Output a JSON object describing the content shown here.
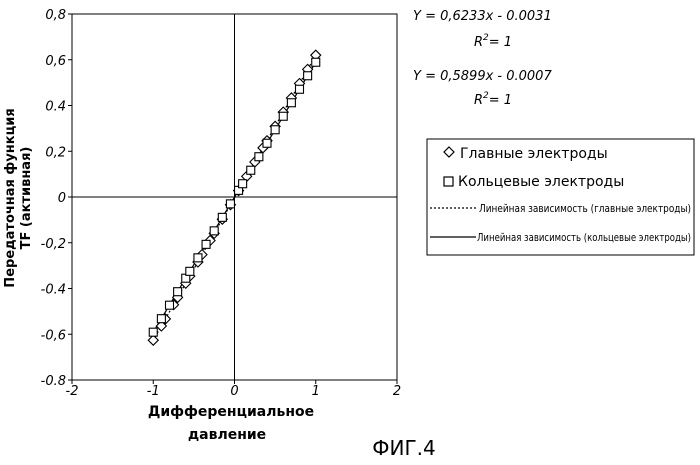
{
  "figure_label": "ФИГ.4",
  "equations": [
    {
      "line": "Y = 0,6233x - 0.0031",
      "r2_base": "R",
      "r2_sup": "2",
      "r2_rest": "= 1"
    },
    {
      "line": "Y = 0,5899x - 0.0007",
      "r2_base": "R",
      "r2_sup": "2",
      "r2_rest": "= 1"
    }
  ],
  "chart_data": {
    "type": "scatter",
    "xlabel": [
      "Дифференциальное",
      "давление"
    ],
    "ylabel": [
      "Передаточная функция",
      "TF (активная)"
    ],
    "xlim": [
      -2,
      2
    ],
    "ylim": [
      -0.8,
      0.8
    ],
    "x_ticks": [
      -2,
      -1,
      0,
      1,
      2
    ],
    "x_tick_labels": [
      "-2",
      "-1",
      "0",
      "1",
      "2"
    ],
    "y_ticks": [
      -0.8,
      -0.6,
      -0.4,
      -0.2,
      0,
      0.2,
      0.4,
      0.6,
      0.8
    ],
    "y_tick_labels": [
      "-0.8",
      "-0,6",
      "-0.4",
      "-0,2",
      "0",
      "0,2",
      "0.4",
      "0,6",
      "0,8"
    ],
    "grid": false,
    "legend_position": "right",
    "series": [
      {
        "name": "Главные электроды",
        "marker": "diamond",
        "x": [
          -1.0,
          -0.9,
          -0.85,
          -0.75,
          -0.7,
          -0.6,
          -0.55,
          -0.45,
          -0.4,
          -0.3,
          -0.25,
          -0.15,
          -0.05,
          0.05,
          0.15,
          0.25,
          0.35,
          0.4,
          0.5,
          0.6,
          0.7,
          0.8,
          0.9,
          1.0
        ],
        "y": [
          -0.626,
          -0.564,
          -0.533,
          -0.471,
          -0.439,
          -0.377,
          -0.346,
          -0.284,
          -0.252,
          -0.19,
          -0.159,
          -0.097,
          -0.034,
          0.028,
          0.09,
          0.153,
          0.215,
          0.246,
          0.309,
          0.371,
          0.433,
          0.496,
          0.558,
          0.62
        ]
      },
      {
        "name": "Кольцевые электроды",
        "marker": "square",
        "x": [
          -1.0,
          -0.9,
          -0.8,
          -0.7,
          -0.6,
          -0.55,
          -0.45,
          -0.35,
          -0.25,
          -0.15,
          -0.05,
          0.05,
          0.1,
          0.2,
          0.3,
          0.4,
          0.5,
          0.6,
          0.7,
          0.8,
          0.9,
          1.0
        ],
        "y": [
          -0.591,
          -0.532,
          -0.473,
          -0.414,
          -0.355,
          -0.325,
          -0.266,
          -0.207,
          -0.148,
          -0.089,
          -0.03,
          0.029,
          0.058,
          0.117,
          0.176,
          0.235,
          0.294,
          0.353,
          0.412,
          0.471,
          0.53,
          0.589
        ]
      },
      {
        "name": "Линейная зависимость (главные электроды)",
        "type": "line",
        "style": "dotted",
        "slope": 0.6233,
        "intercept": -0.0031
      },
      {
        "name": "Линейная зависимость (кольцевые электроды)",
        "type": "line",
        "style": "solid",
        "slope": 0.5899,
        "intercept": -0.0007
      }
    ]
  }
}
